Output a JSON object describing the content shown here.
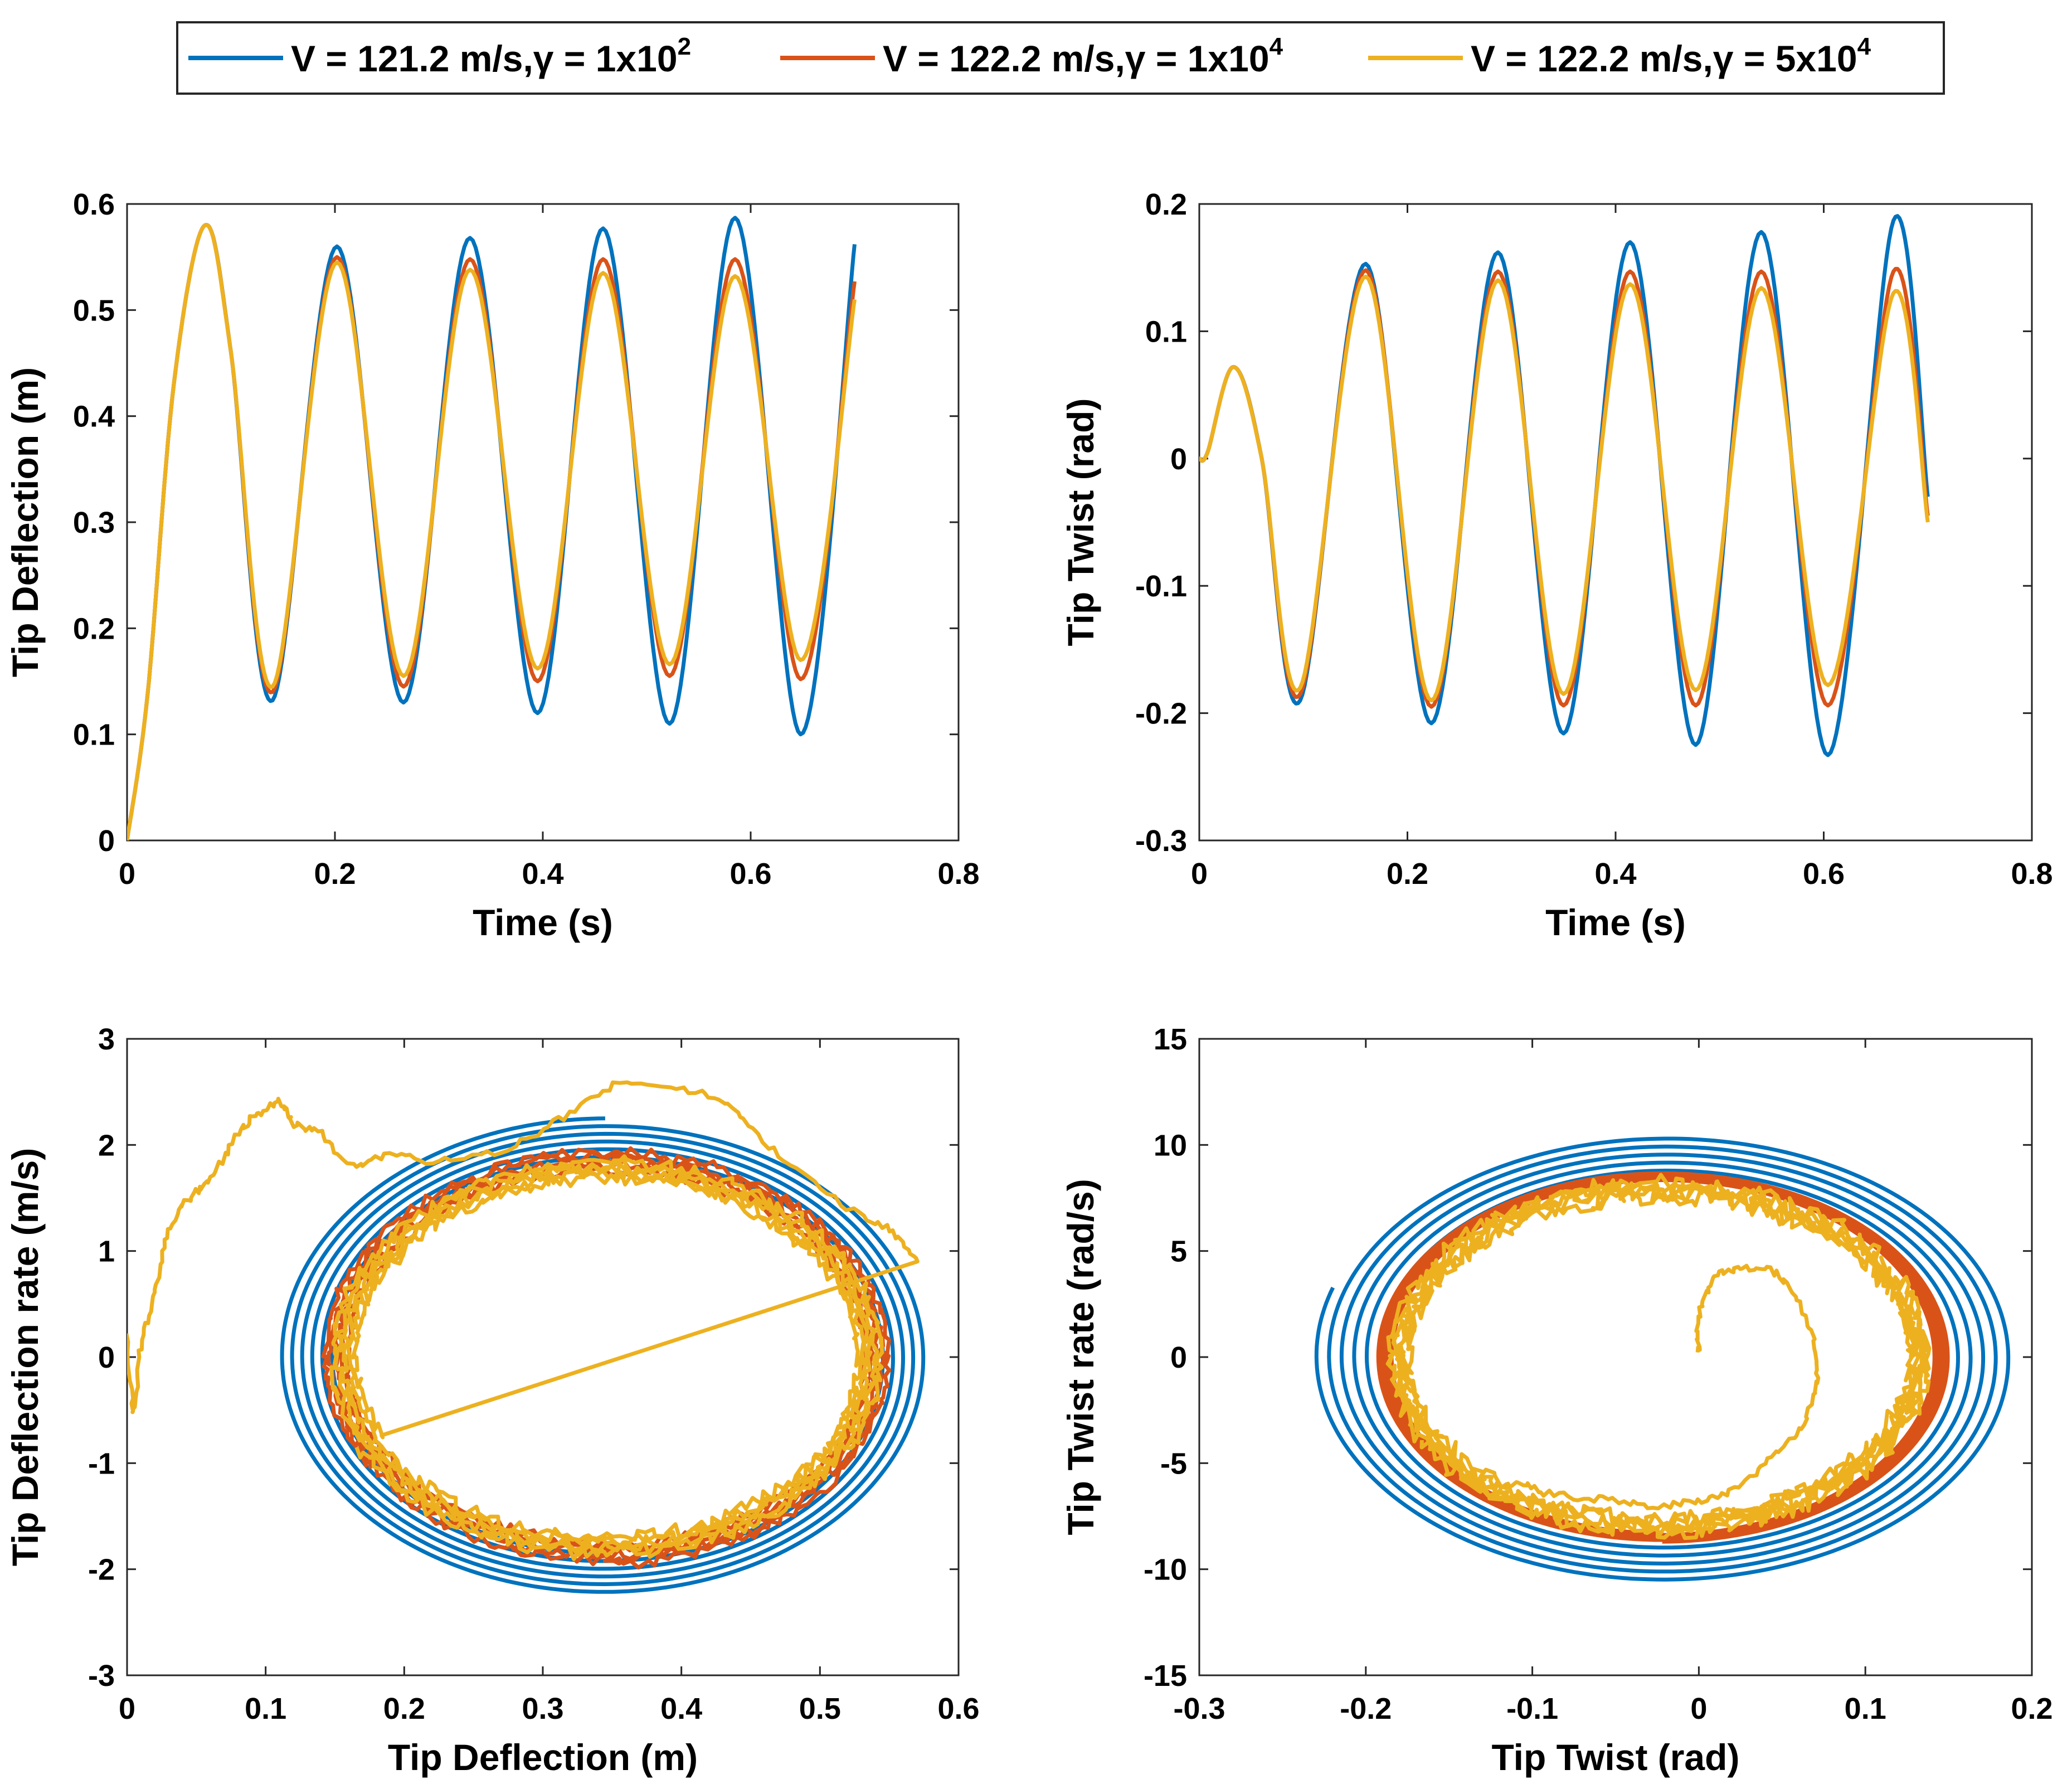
{
  "legend": {
    "entries": [
      {
        "name": "V = 121.2 m/s,γ = 1x10",
        "sup": "2",
        "color": "#0072BD"
      },
      {
        "name": "V = 122.2 m/s,γ = 1x10",
        "sup": "4",
        "color": "#D95319"
      },
      {
        "name": "V = 122.2 m/s,γ = 5x10",
        "sup": "4",
        "color": "#EDB120"
      }
    ]
  },
  "chart_data": [
    {
      "type": "line",
      "id": "deflection-time",
      "xlabel": "Time (s)",
      "ylabel": "Tip Deflection (m)",
      "xlim": [
        0,
        0.8
      ],
      "ylim": [
        0,
        0.6
      ],
      "xticks": [
        0,
        0.2,
        0.4,
        0.6,
        0.8
      ],
      "xtick_labels": [
        "0",
        "0.2",
        "0.4",
        "0.6",
        "0.8"
      ],
      "yticks": [
        0,
        0.1,
        0.2,
        0.3,
        0.4,
        0.5,
        0.6
      ],
      "ytick_labels": [
        "0",
        "0.1",
        "0.2",
        "0.3",
        "0.4",
        "0.5",
        "0.6"
      ],
      "series": [
        {
          "name": "V = 121.2 m/s, γ = 1x10^2",
          "color": "#0072BD",
          "x": [
            0,
            0.02,
            0.045,
            0.075,
            0.1,
            0.14,
            0.202,
            0.266,
            0.33,
            0.395,
            0.458,
            0.522,
            0.585,
            0.648,
            0.7
          ],
          "y": [
            0,
            0.14,
            0.43,
            0.58,
            0.46,
            0.132,
            0.56,
            0.13,
            0.568,
            0.12,
            0.577,
            0.11,
            0.587,
            0.1,
            0.562
          ]
        },
        {
          "name": "V = 122.2 m/s, γ = 1x10^4",
          "color": "#D95319",
          "x": [
            0,
            0.02,
            0.045,
            0.075,
            0.1,
            0.14,
            0.202,
            0.266,
            0.33,
            0.395,
            0.458,
            0.522,
            0.585,
            0.648,
            0.7
          ],
          "y": [
            0,
            0.14,
            0.43,
            0.58,
            0.46,
            0.14,
            0.55,
            0.145,
            0.548,
            0.15,
            0.548,
            0.155,
            0.548,
            0.152,
            0.527
          ]
        },
        {
          "name": "V = 122.2 m/s, γ = 5x10^4",
          "color": "#EDB120",
          "x": [
            0,
            0.02,
            0.045,
            0.075,
            0.1,
            0.14,
            0.202,
            0.266,
            0.33,
            0.395,
            0.458,
            0.522,
            0.585,
            0.648,
            0.7
          ],
          "y": [
            0,
            0.14,
            0.43,
            0.58,
            0.46,
            0.145,
            0.545,
            0.155,
            0.538,
            0.162,
            0.535,
            0.166,
            0.532,
            0.17,
            0.51
          ]
        }
      ]
    },
    {
      "type": "line",
      "id": "twist-time",
      "xlabel": "Time (s)",
      "ylabel": "Tip Twist (rad)",
      "xlim": [
        0,
        0.8
      ],
      "ylim": [
        -0.3,
        0.2
      ],
      "xticks": [
        0,
        0.2,
        0.4,
        0.6,
        0.8
      ],
      "xtick_labels": [
        "0",
        "0.2",
        "0.4",
        "0.6",
        "0.8"
      ],
      "yticks": [
        -0.3,
        -0.2,
        -0.1,
        0,
        0.1,
        0.2
      ],
      "ytick_labels": [
        "-0.3",
        "-0.2",
        "-0.1",
        "0",
        "0.1",
        "0.2"
      ],
      "series": [
        {
          "name": "V = 121.2 m/s, γ = 1x10^2",
          "color": "#0072BD",
          "x": [
            0,
            0.008,
            0.033,
            0.06,
            0.097,
            0.16,
            0.223,
            0.287,
            0.35,
            0.414,
            0.477,
            0.54,
            0.604,
            0.667,
            0.7
          ],
          "y": [
            0,
            0.005,
            0.072,
            0.0,
            -0.19,
            0.153,
            -0.208,
            0.162,
            -0.216,
            0.17,
            -0.225,
            0.178,
            -0.233,
            0.187,
            -0.03
          ]
        },
        {
          "name": "V = 122.2 m/s, γ = 1x10^4",
          "color": "#D95319",
          "x": [
            0,
            0.008,
            0.033,
            0.06,
            0.097,
            0.16,
            0.223,
            0.287,
            0.35,
            0.414,
            0.477,
            0.54,
            0.604,
            0.667,
            0.7
          ],
          "y": [
            0,
            0.005,
            0.072,
            0.0,
            -0.185,
            0.148,
            -0.195,
            0.147,
            -0.194,
            0.147,
            -0.194,
            0.147,
            -0.194,
            0.147,
            -0.045
          ]
        },
        {
          "name": "V = 122.2 m/s, γ = 5x10^4",
          "color": "#EDB120",
          "x": [
            0,
            0.008,
            0.033,
            0.06,
            0.097,
            0.16,
            0.223,
            0.287,
            0.35,
            0.414,
            0.477,
            0.54,
            0.604,
            0.667,
            0.7
          ],
          "y": [
            0,
            0.005,
            0.072,
            0.0,
            -0.18,
            0.143,
            -0.19,
            0.14,
            -0.185,
            0.137,
            -0.182,
            0.134,
            -0.178,
            0.13,
            -0.05
          ]
        }
      ]
    },
    {
      "type": "line",
      "id": "deflection-phase",
      "xlabel": "Tip Deflection (m)",
      "ylabel": "Tip Deflection rate (m/s)",
      "xlim": [
        0,
        0.6
      ],
      "ylim": [
        -3,
        3
      ],
      "xticks": [
        0,
        0.1,
        0.2,
        0.3,
        0.4,
        0.5,
        0.6
      ],
      "xtick_labels": [
        "0",
        "0.1",
        "0.2",
        "0.3",
        "0.4",
        "0.5",
        "0.6"
      ],
      "yticks": [
        -3,
        -2,
        -1,
        0,
        1,
        2,
        3
      ],
      "ytick_labels": [
        "-3",
        "-2",
        "-1",
        "0",
        "1",
        "2",
        "3"
      ],
      "series": [
        {
          "name": "V = 121.2 m/s, γ = 1x10^2",
          "color": "#0072BD",
          "orbit": {
            "cx": 0.345,
            "cy": 0,
            "rx_start": 0.195,
            "rx_end": 0.235,
            "ry_start": 1.85,
            "ry_end": 2.25,
            "turns": 5.5
          }
        },
        {
          "name": "V = 122.2 m/s, γ = 1x10^4",
          "color": "#D95319",
          "orbit": {
            "cx": 0.345,
            "cy": 0,
            "rx_start": 0.185,
            "rx_end": 0.205,
            "ry_start": 1.75,
            "ry_end": 1.95,
            "turns": 5,
            "jitter": 0.06
          }
        },
        {
          "name": "V = 122.2 m/s, γ = 5x10^4",
          "color": "#EDB120",
          "transient_x": [
            0.0,
            0.005,
            0.01,
            0.02,
            0.03,
            0.045,
            0.06,
            0.08,
            0.095,
            0.11,
            0.12,
            0.14,
            0.16,
            0.19,
            0.23,
            0.28,
            0.32,
            0.36,
            0.41,
            0.44,
            0.47,
            0.52,
            0.55,
            0.57
          ],
          "transient_y": [
            0.2,
            -0.5,
            0.1,
            0.6,
            1.2,
            1.5,
            1.7,
            2.1,
            2.3,
            2.4,
            2.2,
            2.1,
            1.8,
            1.9,
            1.85,
            2.0,
            2.3,
            2.6,
            2.5,
            2.3,
            1.9,
            1.4,
            1.2,
            0.9
          ],
          "orbit": {
            "cx": 0.345,
            "cy": 0,
            "rx_start": 0.18,
            "rx_end": 0.2,
            "ry_start": 1.68,
            "ry_end": 1.85,
            "turns": 5,
            "jitter": 0.08
          }
        }
      ]
    },
    {
      "type": "line",
      "id": "twist-phase",
      "xlabel": "Tip Twist (rad)",
      "ylabel": "Tip Twist rate (rad/s)",
      "xlim": [
        -0.3,
        0.2
      ],
      "ylim": [
        -15,
        15
      ],
      "xticks": [
        -0.3,
        -0.2,
        -0.1,
        0,
        0.1,
        0.2
      ],
      "xtick_labels": [
        "-0.3",
        "-0.2",
        "-0.1",
        "0",
        "0.1",
        "0.2"
      ],
      "yticks": [
        -15,
        -10,
        -5,
        0,
        5,
        10,
        15
      ],
      "ytick_labels": [
        "-15",
        "-10",
        "-5",
        "0",
        "5",
        "10",
        "15"
      ],
      "series": [
        {
          "name": "V = 121.2 m/s, γ = 1x10^2",
          "color": "#0072BD",
          "orbit": {
            "cx": -0.02,
            "cy": 0,
            "rx_start": 0.17,
            "rx_end": 0.21,
            "ry_start": 8.6,
            "ry_end": 10.6,
            "turns": 5.3
          }
        },
        {
          "name": "V = 122.2 m/s, γ = 1x10^4",
          "color": "#D95319",
          "orbit": {
            "cx": -0.022,
            "cy": 0,
            "rx_start": 0.162,
            "rx_end": 0.172,
            "ry_start": 8.3,
            "ry_end": 8.7,
            "turns": 5
          }
        },
        {
          "name": "V = 122.2 m/s, γ = 5x10^4",
          "color": "#EDB120",
          "transient_x": [
            0.0,
            0.0,
            0.01,
            0.025,
            0.045,
            0.06,
            0.07,
            0.07,
            0.06,
            0.04,
            0.02,
            0.0,
            -0.03,
            -0.06,
            -0.09,
            -0.11,
            -0.13
          ],
          "transient_y": [
            0.2,
            2.0,
            3.8,
            4.2,
            4.0,
            2.5,
            0.5,
            -1.5,
            -3.5,
            -5.0,
            -6.2,
            -6.8,
            -7.0,
            -6.7,
            -6.4,
            -6.0,
            -6.2
          ],
          "orbit": {
            "cx": -0.024,
            "cy": 0,
            "rx_start": 0.15,
            "rx_end": 0.163,
            "ry_start": 7.6,
            "ry_end": 8.2,
            "turns": 5,
            "jitter": 0.12
          }
        }
      ]
    }
  ]
}
